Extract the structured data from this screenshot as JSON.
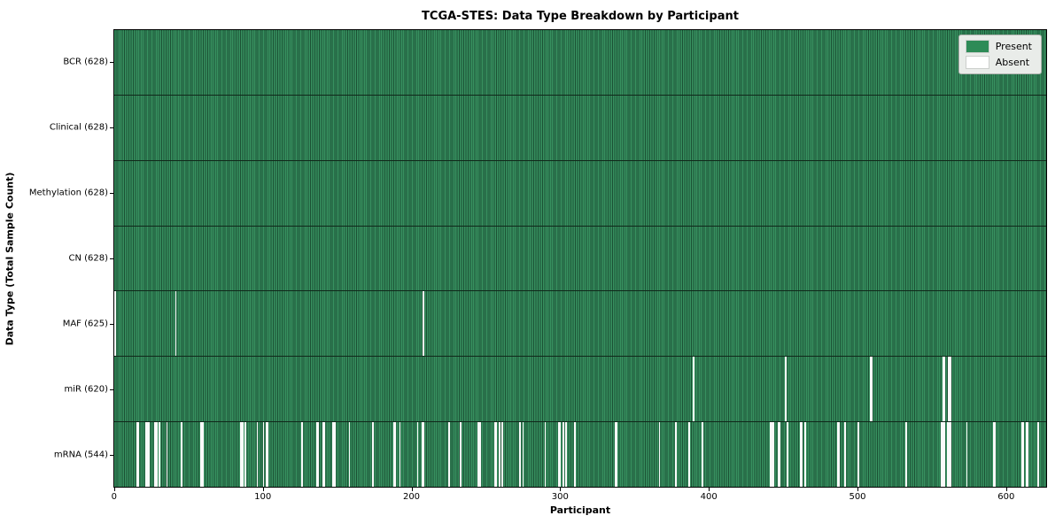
{
  "chart_data": {
    "type": "heatmap",
    "title": "TCGA-STES: Data Type Breakdown by Participant",
    "xlabel": "Participant",
    "ylabel": "Data Type (Total Sample Count)",
    "total_participants": 628,
    "x_ticks": [
      0,
      100,
      200,
      300,
      400,
      500,
      600
    ],
    "xlim": [
      -0.5,
      627.5
    ],
    "grid": false,
    "legend_position": "upper right",
    "legend": [
      {
        "label": "Present",
        "color": "#2e8b57"
      },
      {
        "label": "Absent",
        "color": "#ffffff"
      }
    ],
    "colors": {
      "present": "#2e8b57",
      "present_edge": "#1b5134",
      "absent": "#ffffff"
    },
    "rows": [
      {
        "label": "BCR (628)",
        "data_type": "BCR",
        "present_count": 628,
        "absent_count": 0,
        "absent_indices": []
      },
      {
        "label": "Clinical (628)",
        "data_type": "Clinical",
        "present_count": 628,
        "absent_count": 0,
        "absent_indices": []
      },
      {
        "label": "Methylation (628)",
        "data_type": "Methylation",
        "present_count": 628,
        "absent_count": 0,
        "absent_indices": []
      },
      {
        "label": "CN (628)",
        "data_type": "CN",
        "present_count": 628,
        "absent_count": 0,
        "absent_indices": []
      },
      {
        "label": "MAF (625)",
        "data_type": "MAF",
        "present_count": 625,
        "absent_count": 3,
        "absent_indices": [
          0,
          41,
          208
        ]
      },
      {
        "label": "miR (620)",
        "data_type": "miR",
        "present_count": 620,
        "absent_count": 8,
        "absent_indices": [
          390,
          452,
          509,
          510,
          558,
          559,
          562,
          563
        ]
      },
      {
        "label": "mRNA (544)",
        "data_type": "mRNA",
        "present_count": 544,
        "absent_count": 84,
        "absent_indices": [
          15,
          16,
          21,
          22,
          23,
          27,
          28,
          30,
          35,
          45,
          58,
          59,
          85,
          86,
          88,
          96,
          100,
          102,
          103,
          126,
          136,
          137,
          140,
          141,
          147,
          148,
          158,
          174,
          188,
          189,
          192,
          204,
          207,
          208,
          225,
          233,
          245,
          246,
          256,
          257,
          259,
          261,
          273,
          275,
          290,
          299,
          300,
          302,
          304,
          310,
          337,
          338,
          367,
          378,
          387,
          396,
          442,
          443,
          444,
          447,
          448,
          453,
          462,
          463,
          465,
          487,
          488,
          492,
          501,
          533,
          557,
          558,
          559,
          561,
          562,
          563,
          574,
          592,
          593,
          611,
          612,
          614,
          615,
          622
        ]
      }
    ]
  }
}
